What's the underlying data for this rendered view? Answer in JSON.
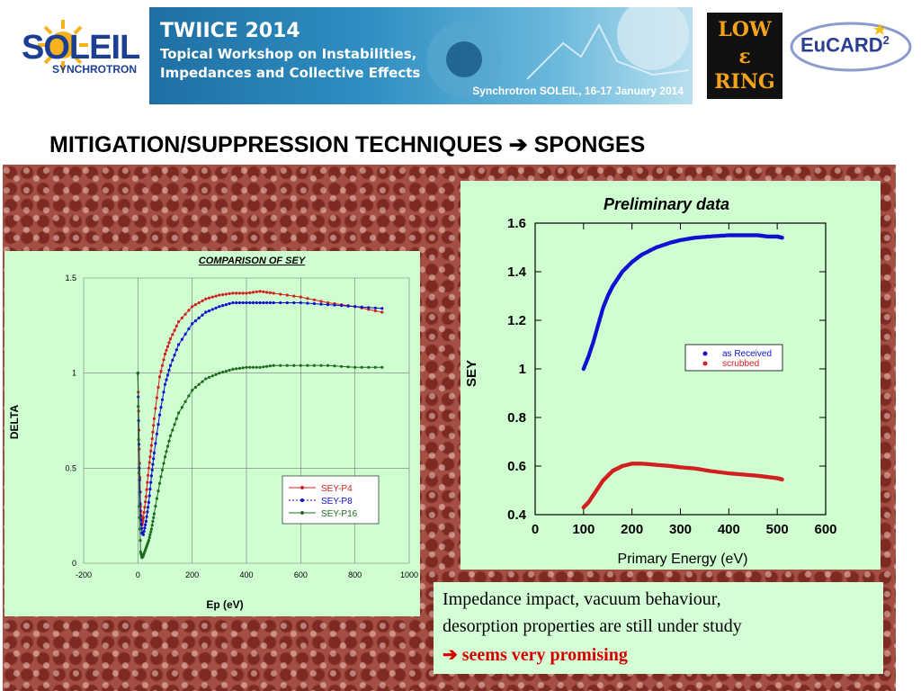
{
  "header": {
    "soleil": {
      "word": "SOLEIL",
      "sub": "SYNCHROTRON"
    },
    "banner": {
      "title": "TWIICE 2014",
      "line1": "Topical Workshop on Instabilities,",
      "line2": "Impedances and Collective Effects",
      "location": "Synchrotron SOLEIL, 16-17 January 2014"
    },
    "lowring": {
      "top": "LOW",
      "mid": "ε",
      "bottom": "RING"
    },
    "eucard": {
      "text": "EuCARD",
      "sup": "2"
    }
  },
  "title": {
    "text": "MITIGATION/SUPPRESSION TECHNIQUES",
    "arrow": "➔",
    "text2": "SPONGES"
  },
  "conclusion": {
    "line1": "Impedance impact, vacuum behaviour,",
    "line2": "desorption properties are still under study",
    "arrow": "➔",
    "promising": "seems very promising"
  },
  "colors": {
    "red": "#d02020",
    "blue": "#1010d0",
    "green": "#1e6b1e",
    "panel": "#cfffd1",
    "highlight": "#d40000"
  },
  "chart_data": [
    {
      "type": "line",
      "title": "COMPARISON OF SEY",
      "xlabel": "Ep (eV)",
      "ylabel": "DELTA",
      "xlim": [
        -200,
        1000
      ],
      "ylim": [
        0,
        1.5
      ],
      "xticks": [
        "-200",
        "0",
        "200",
        "400",
        "600",
        "800",
        "1000"
      ],
      "yticks": [
        "0",
        "0.5",
        "1",
        "1.5"
      ],
      "grid": true,
      "legend": {
        "position": "lower-right",
        "entries": [
          "SEY-P4",
          "SEY-P8",
          "SEY-P16"
        ]
      },
      "series": [
        {
          "name": "SEY-P4",
          "color": "#d02020",
          "x": [
            0,
            5,
            10,
            15,
            20,
            30,
            40,
            50,
            60,
            80,
            100,
            120,
            150,
            200,
            250,
            300,
            350,
            400,
            450,
            500,
            600,
            700,
            800,
            900
          ],
          "y": [
            1.0,
            0.6,
            0.3,
            0.2,
            0.24,
            0.35,
            0.5,
            0.62,
            0.76,
            0.98,
            1.1,
            1.18,
            1.27,
            1.35,
            1.39,
            1.41,
            1.42,
            1.42,
            1.43,
            1.42,
            1.4,
            1.37,
            1.35,
            1.32
          ]
        },
        {
          "name": "SEY-P8",
          "color": "#1010d0",
          "x": [
            0,
            5,
            10,
            15,
            20,
            30,
            40,
            50,
            60,
            80,
            100,
            120,
            150,
            200,
            250,
            300,
            350,
            400,
            450,
            500,
            600,
            700,
            800,
            900
          ],
          "y": [
            1.0,
            0.5,
            0.25,
            0.16,
            0.15,
            0.22,
            0.32,
            0.46,
            0.58,
            0.78,
            0.94,
            1.04,
            1.15,
            1.26,
            1.32,
            1.35,
            1.37,
            1.37,
            1.37,
            1.37,
            1.37,
            1.36,
            1.35,
            1.34
          ]
        },
        {
          "name": "SEY-P16",
          "color": "#1e6b1e",
          "x": [
            0,
            5,
            10,
            15,
            20,
            30,
            40,
            50,
            60,
            80,
            100,
            120,
            150,
            200,
            250,
            300,
            350,
            400,
            450,
            500,
            600,
            700,
            800,
            900
          ],
          "y": [
            1.0,
            0.3,
            0.06,
            0.03,
            0.04,
            0.08,
            0.12,
            0.18,
            0.26,
            0.42,
            0.56,
            0.67,
            0.79,
            0.91,
            0.97,
            1.0,
            1.02,
            1.03,
            1.03,
            1.04,
            1.04,
            1.04,
            1.03,
            1.03
          ]
        }
      ]
    },
    {
      "type": "scatter",
      "title": "Preliminary data",
      "xlabel": "Primary Energy (eV)",
      "ylabel": "SEY",
      "xlim": [
        0,
        600
      ],
      "ylim": [
        0.4,
        1.6
      ],
      "xticks": [
        "0",
        "100",
        "200",
        "300",
        "400",
        "500",
        "600"
      ],
      "yticks": [
        "0.4",
        "0.6",
        "0.8",
        "1",
        "1.2",
        "1.4",
        "1.6"
      ],
      "legend": {
        "position": "right-middle",
        "entries": [
          "as Received",
          "scrubbed"
        ]
      },
      "series": [
        {
          "name": "as Received",
          "color": "#1010d0",
          "x": [
            100,
            110,
            120,
            130,
            140,
            150,
            160,
            170,
            180,
            200,
            220,
            250,
            280,
            300,
            330,
            360,
            400,
            430,
            460,
            480,
            500,
            510
          ],
          "y": [
            1.0,
            1.05,
            1.11,
            1.18,
            1.25,
            1.3,
            1.34,
            1.37,
            1.4,
            1.44,
            1.47,
            1.5,
            1.52,
            1.53,
            1.54,
            1.545,
            1.55,
            1.55,
            1.55,
            1.545,
            1.545,
            1.54
          ]
        },
        {
          "name": "scrubbed",
          "color": "#d02020",
          "x": [
            100,
            110,
            120,
            130,
            140,
            150,
            160,
            170,
            180,
            200,
            220,
            250,
            280,
            300,
            330,
            360,
            400,
            430,
            460,
            480,
            500,
            510
          ],
          "y": [
            0.43,
            0.45,
            0.48,
            0.51,
            0.54,
            0.56,
            0.58,
            0.59,
            0.6,
            0.61,
            0.61,
            0.605,
            0.6,
            0.595,
            0.59,
            0.58,
            0.57,
            0.565,
            0.56,
            0.555,
            0.55,
            0.545
          ]
        }
      ]
    }
  ]
}
